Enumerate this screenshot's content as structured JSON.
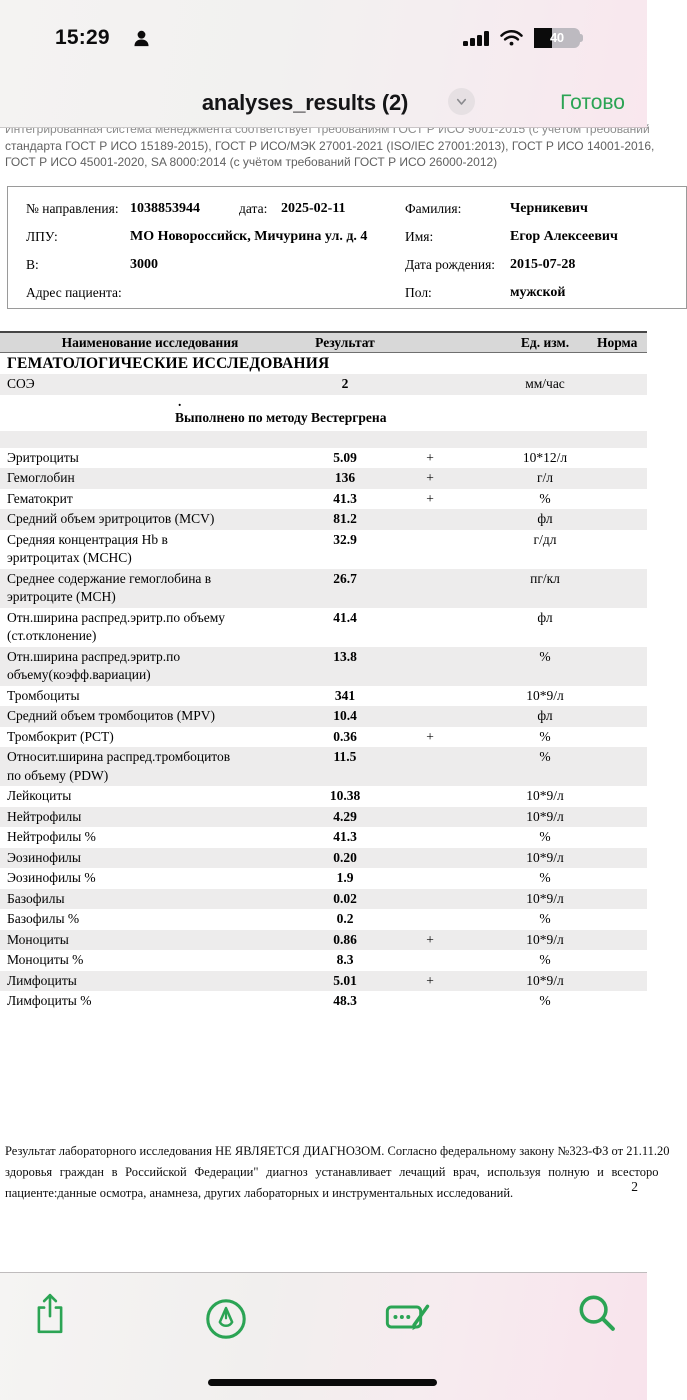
{
  "colors": {
    "accent_green": "#2ba454"
  },
  "status_bar": {
    "time": "15:29",
    "battery_percent": "40"
  },
  "nav_bar": {
    "title": "analyses_results (2)",
    "done_label": "Готово"
  },
  "document": {
    "gost_lines": [
      "Интегрированная система менеджмента соответствует требованиям ГОСТ Р ИСО 9001-2015 (с учётом требований",
      "стандарта ГОСТ Р ИСО 15189-2015), ГОСТ Р ИСО/МЭК 27001-2021 (ISO/IEC 27001:2013), ГОСТ Р ИСО 14001-2016,",
      "ГОСТ Р ИСО 45001-2020, SA 8000:2014 (с учётом требований ГОСТ Р ИСО 26000-2012)"
    ],
    "patient": {
      "left_rows": [
        {
          "label": "№ направления:",
          "value": "1038853944",
          "sub_label": "дата:",
          "sub_value": "2025-02-11"
        },
        {
          "label": "ЛПУ:",
          "value": "МО Новороссийск, Мичурина ул. д. 4"
        },
        {
          "label": "В:",
          "value": "3000"
        },
        {
          "label": "Адрес пациента:",
          "value": ""
        }
      ],
      "right_rows": [
        {
          "label": "Фамилия:",
          "value": "Черникевич"
        },
        {
          "label": "Имя:",
          "value": "Егор Алексеевич"
        },
        {
          "label": "Дата рождения:",
          "value": "2015-07-28"
        },
        {
          "label": "Пол:",
          "value": "мужской"
        }
      ]
    },
    "table": {
      "headers": [
        "Наименование исследования",
        "Результат",
        "Ед. изм.",
        "Норма"
      ],
      "section_title": "ГЕМАТОЛОГИЧЕСКИЕ ИССЛЕДОВАНИЯ",
      "soe_row": {
        "name": "СОЭ",
        "result": "2",
        "flag": "",
        "unit": "мм/час",
        "norm": ""
      },
      "method_note_dot": ".",
      "method_note": "Выполнено по методу Вестергрена",
      "rows": [
        {
          "name": "Эритроциты",
          "result": "5.09",
          "flag": "+",
          "unit": "10*12/л",
          "norm": ""
        },
        {
          "name": "Гемоглобин",
          "result": "136",
          "flag": "+",
          "unit": "г/л",
          "norm": ""
        },
        {
          "name": "Гематокрит",
          "result": "41.3",
          "flag": "+",
          "unit": "%",
          "norm": ""
        },
        {
          "name": "Средний объем эритроцитов (MCV)",
          "result": "81.2",
          "flag": "",
          "unit": "фл",
          "norm": ""
        },
        {
          "name": "Средняя концентрация Hb в эритроцитах (MCHC)",
          "result": "32.9",
          "flag": "",
          "unit": "г/дл",
          "norm": ""
        },
        {
          "name": "Среднее содержание гемоглобина в эритроците (MCH)",
          "result": "26.7",
          "flag": "",
          "unit": "пг/кл",
          "norm": ""
        },
        {
          "name": "Отн.ширина распред.эритр.по объему (ст.отклонение)",
          "result": "41.4",
          "flag": "",
          "unit": "фл",
          "norm": ""
        },
        {
          "name": "Отн.ширина распред.эритр.по объему(коэфф.вариации)",
          "result": "13.8",
          "flag": "",
          "unit": "%",
          "norm": ""
        },
        {
          "name": "Тромбоциты",
          "result": "341",
          "flag": "",
          "unit": "10*9/л",
          "norm": ""
        },
        {
          "name": "Средний объем тромбоцитов (MPV)",
          "result": "10.4",
          "flag": "",
          "unit": "фл",
          "norm": ""
        },
        {
          "name": "Тромбокрит (PCT)",
          "result": "0.36",
          "flag": "+",
          "unit": "%",
          "norm": ""
        },
        {
          "name": "Относит.ширина распред.тромбоцитов по объему (PDW)",
          "result": "11.5",
          "flag": "",
          "unit": "%",
          "norm": ""
        },
        {
          "name": "Лейкоциты",
          "result": "10.38",
          "flag": "",
          "unit": "10*9/л",
          "norm": ""
        },
        {
          "name": "Нейтрофилы",
          "result": "4.29",
          "flag": "",
          "unit": "10*9/л",
          "norm": ""
        },
        {
          "name": "Нейтрофилы %",
          "result": "41.3",
          "flag": "",
          "unit": "%",
          "norm": ""
        },
        {
          "name": "Эозинофилы",
          "result": "0.20",
          "flag": "",
          "unit": "10*9/л",
          "norm": ""
        },
        {
          "name": "Эозинофилы %",
          "result": "1.9",
          "flag": "",
          "unit": "%",
          "norm": ""
        },
        {
          "name": "Базофилы",
          "result": "0.02",
          "flag": "",
          "unit": "10*9/л",
          "norm": ""
        },
        {
          "name": "Базофилы %",
          "result": "0.2",
          "flag": "",
          "unit": "%",
          "norm": ""
        },
        {
          "name": "Моноциты",
          "result": "0.86",
          "flag": "+",
          "unit": "10*9/л",
          "norm": ""
        },
        {
          "name": "Моноциты %",
          "result": "8.3",
          "flag": "",
          "unit": "%",
          "norm": ""
        },
        {
          "name": "Лимфоциты",
          "result": "5.01",
          "flag": "+",
          "unit": "10*9/л",
          "norm": ""
        },
        {
          "name": "Лимфоциты %",
          "result": "48.3",
          "flag": "",
          "unit": "%",
          "norm": ""
        }
      ]
    },
    "footer": {
      "lines": [
        "Результат лабораторного исследования НЕ ЯВЛЯЕТСЯ ДИАГНОЗОМ. Согласно федеральному закону №323-ФЗ от 21.11.20",
        "здоровья граждан в Российской Федерации\" диагноз устанавливает лечащий врач, используя полную и всесторо",
        "пациенте:данные осмотра, анамнеза, других лабораторных и инструментальных исследований."
      ],
      "page_number": "2"
    }
  },
  "toolbar": {
    "icons": [
      "share-icon",
      "markup-icon",
      "signature-form-icon",
      "search-icon"
    ]
  }
}
